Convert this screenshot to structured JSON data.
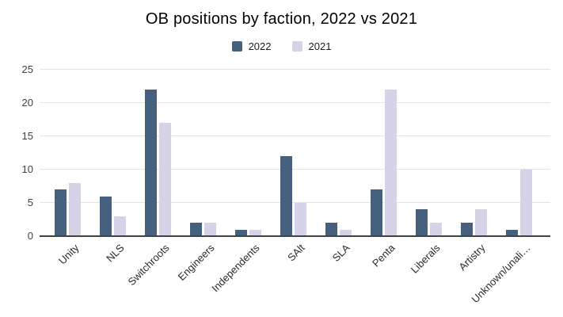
{
  "chart_data": {
    "type": "bar",
    "title": "OB positions by faction, 2022 vs 2021",
    "categories": [
      "Unity",
      "NLS",
      "Switchroots",
      "Engineers",
      "Independents",
      "SAlt",
      "SLA",
      "Penta",
      "Liberals",
      "Artistry",
      "Unknown/unali…"
    ],
    "series": [
      {
        "name": "2022",
        "color": "#45617d",
        "values": [
          7,
          6,
          22,
          2,
          1,
          12,
          2,
          7,
          4,
          2,
          1
        ]
      },
      {
        "name": "2021",
        "color": "#d6d3e8",
        "values": [
          8,
          3,
          17,
          2,
          1,
          5,
          1,
          22,
          2,
          4,
          10
        ]
      }
    ],
    "xlabel": "",
    "ylabel": "",
    "ylim": [
      0,
      25
    ],
    "yticks": [
      0,
      5,
      10,
      15,
      20,
      25
    ],
    "grid": true,
    "legend_position": "top"
  },
  "colors": {
    "background": "#ffffff",
    "gridline": "#e3e3e3",
    "axis_baseline": "#424242",
    "tick_text": "#404040",
    "title_text": "#000000"
  }
}
